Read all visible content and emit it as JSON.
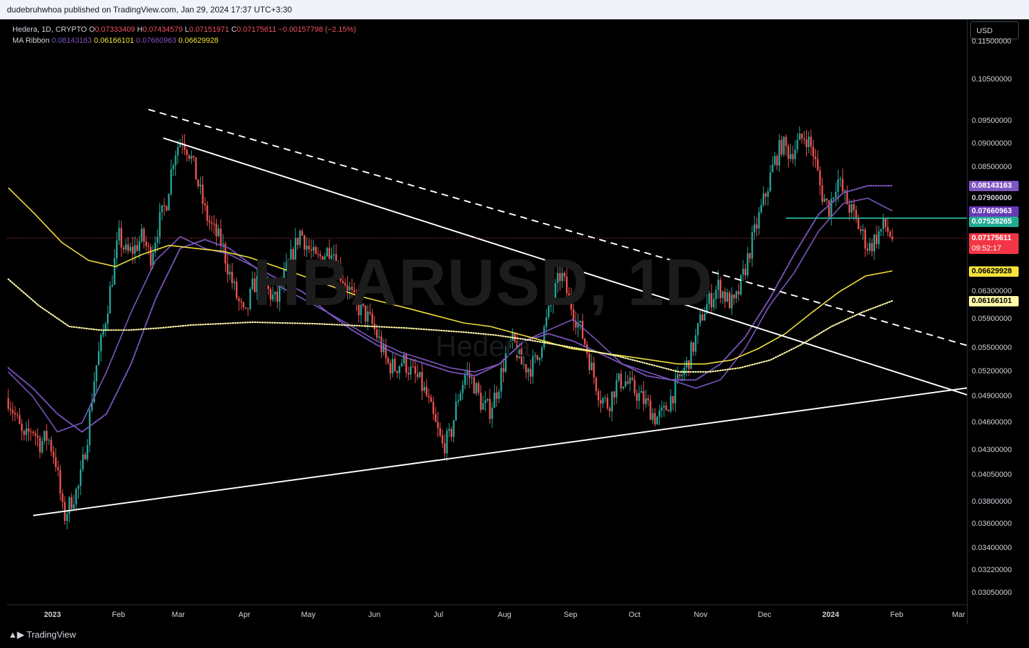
{
  "header": {
    "text": "dudebruhwhoa published on TradingView.com, Jan 29, 2024 17:37 UTC+3:30"
  },
  "legend": {
    "symbol": "Hedera, 1D, CRYPTO",
    "o_key": "O",
    "o_val": "0.07333409",
    "h_key": "H",
    "h_val": "0.07434579",
    "l_key": "L",
    "l_val": "0.07151971",
    "c_key": "C",
    "c_val": "0.07175611",
    "change": "−0.00157798 (−2.15%)",
    "ma_label": "MA Ribbon",
    "ma_vals": [
      "0.08143163",
      "0.06166101",
      "0.07660963",
      "0.06629928"
    ]
  },
  "watermark": {
    "ticker": "HBARUSD, 1D",
    "name": "Hedera"
  },
  "currency_button": "USD",
  "footer": {
    "brand": "TradingView"
  },
  "chart_data": {
    "type": "candlestick",
    "symbol": "HBARUSD",
    "interval": "1D",
    "scale": "log",
    "ylim": [
      0.0297,
      0.1215
    ],
    "price_ticks": [
      "0.11500000",
      "0.10500000",
      "0.09500000",
      "0.09000000",
      "0.08500000",
      "0.07900000",
      "0.06300000",
      "0.05900000",
      "0.05500000",
      "0.05200000",
      "0.04900000",
      "0.04600000",
      "0.04300000",
      "0.04050000",
      "0.03800000",
      "0.03600000",
      "0.03400000",
      "0.03220000",
      "0.03050000"
    ],
    "time_labels": [
      "2023",
      "Feb",
      "Mar",
      "Apr",
      "May",
      "Jun",
      "Jul",
      "Aug",
      "Sep",
      "Oct",
      "Nov",
      "Dec",
      "2024",
      "Feb",
      "Mar"
    ],
    "price_badges": [
      {
        "value": "0.08143163",
        "bg": "#7e57c2",
        "fg": "#ffffff"
      },
      {
        "value": "0.07900000",
        "bg": "#000000",
        "fg": "#d1d4dc"
      },
      {
        "value": "0.07660963",
        "bg": "#673ab7",
        "fg": "#ffffff"
      },
      {
        "value": "0.07528265",
        "bg": "#22ab94",
        "fg": "#ffffff"
      },
      {
        "value": "0.07175611",
        "bg": "#f23645",
        "fg": "#ffffff",
        "sub": "09:52:17"
      },
      {
        "value": "0.06629928",
        "bg": "#f5e33b",
        "fg": "#000000"
      },
      {
        "value": "0.06166101",
        "bg": "#fff9a8",
        "fg": "#000000"
      }
    ],
    "close_path": [
      0.0488,
      0.0465,
      0.044,
      0.0455,
      0.0438,
      0.0445,
      0.042,
      0.0365,
      0.0382,
      0.0395,
      0.0445,
      0.052,
      0.057,
      0.064,
      0.072,
      0.069,
      0.07,
      0.072,
      0.0685,
      0.074,
      0.078,
      0.088,
      0.0915,
      0.088,
      0.082,
      0.076,
      0.073,
      0.071,
      0.066,
      0.062,
      0.059,
      0.064,
      0.065,
      0.063,
      0.0615,
      0.0655,
      0.069,
      0.073,
      0.07,
      0.068,
      0.069,
      0.0705,
      0.066,
      0.064,
      0.061,
      0.06,
      0.0585,
      0.056,
      0.053,
      0.0525,
      0.0535,
      0.052,
      0.051,
      0.049,
      0.046,
      0.0435,
      0.0445,
      0.049,
      0.052,
      0.0505,
      0.048,
      0.0475,
      0.05,
      0.054,
      0.056,
      0.053,
      0.0525,
      0.0535,
      0.058,
      0.062,
      0.066,
      0.062,
      0.059,
      0.056,
      0.052,
      0.049,
      0.048,
      0.0505,
      0.051,
      0.05,
      0.049,
      0.048,
      0.0465,
      0.047,
      0.049,
      0.051,
      0.053,
      0.056,
      0.06,
      0.062,
      0.064,
      0.062,
      0.061,
      0.065,
      0.07,
      0.075,
      0.08,
      0.086,
      0.09,
      0.088,
      0.09,
      0.092,
      0.088,
      0.08,
      0.077,
      0.083,
      0.079,
      0.076,
      0.073,
      0.07,
      0.072,
      0.074,
      0.0718
    ],
    "ma_lines": [
      {
        "name": "MA 20",
        "color": "#7e57c2",
        "style": "solid",
        "values": [
          0.052,
          0.049,
          0.045,
          0.046,
          0.052,
          0.06,
          0.068,
          0.072,
          0.07,
          0.069,
          0.067,
          0.064,
          0.062,
          0.06,
          0.058,
          0.056,
          0.0545,
          0.0535,
          0.0525,
          0.052,
          0.053,
          0.056,
          0.0575,
          0.059,
          0.056,
          0.053,
          0.052,
          0.051,
          0.05,
          0.051,
          0.055,
          0.061,
          0.066,
          0.073,
          0.078,
          0.079,
          0.0766
        ]
      },
      {
        "name": "MA 50",
        "color": "#7e57c2",
        "style": "dotted",
        "values": [
          0.0525,
          0.05,
          0.047,
          0.045,
          0.047,
          0.053,
          0.062,
          0.07,
          0.0715,
          0.07,
          0.067,
          0.065,
          0.063,
          0.06,
          0.0575,
          0.0555,
          0.054,
          0.053,
          0.052,
          0.0515,
          0.053,
          0.056,
          0.057,
          0.056,
          0.0545,
          0.053,
          0.0515,
          0.051,
          0.051,
          0.053,
          0.0565,
          0.062,
          0.069,
          0.076,
          0.08,
          0.0814,
          0.0814
        ]
      },
      {
        "name": "MA 100",
        "color": "#f5e33b",
        "style": "solid",
        "values": [
          0.081,
          0.076,
          0.071,
          0.068,
          0.067,
          0.069,
          0.0705,
          0.07,
          0.0695,
          0.0685,
          0.067,
          0.0655,
          0.064,
          0.0625,
          0.0615,
          0.0605,
          0.0595,
          0.0585,
          0.058,
          0.057,
          0.056,
          0.055,
          0.0545,
          0.054,
          0.0535,
          0.053,
          0.053,
          0.0535,
          0.055,
          0.057,
          0.06,
          0.063,
          0.0655,
          0.0663
        ]
      },
      {
        "name": "MA 200",
        "color": "#fff9a8",
        "style": "dotted",
        "values": [
          0.065,
          0.061,
          0.058,
          0.0575,
          0.0575,
          0.0578,
          0.0582,
          0.0584,
          0.0586,
          0.0585,
          0.0584,
          0.0582,
          0.058,
          0.0578,
          0.0575,
          0.0572,
          0.0568,
          0.0562,
          0.0555,
          0.0548,
          0.054,
          0.053,
          0.052,
          0.052,
          0.0525,
          0.0535,
          0.0555,
          0.058,
          0.06,
          0.0617
        ]
      }
    ],
    "trendlines": [
      {
        "name": "dashed-resistance",
        "style": "dashed",
        "color": "#ffffff",
        "from": [
          "2023-02-15",
          0.0978
        ],
        "to": [
          "2024-03-10",
          0.055
        ]
      },
      {
        "name": "solid-resistance",
        "style": "solid",
        "color": "#ffffff",
        "from": [
          "2023-02-22",
          0.0913
        ],
        "to": [
          "2024-03-10",
          0.0488
        ]
      },
      {
        "name": "support",
        "style": "solid",
        "color": "#ffffff",
        "from": [
          "2022-12-23",
          0.0368
        ],
        "to": [
          "2024-03-10",
          0.0502
        ]
      }
    ],
    "horizontal_lines": [
      {
        "name": "level-0.0753",
        "value": 0.07528265,
        "color": "#22ab94",
        "from": "2023-12-11"
      },
      {
        "name": "last-price-line",
        "value": 0.07175611,
        "color": "#f23645",
        "style": "dotted"
      }
    ]
  }
}
